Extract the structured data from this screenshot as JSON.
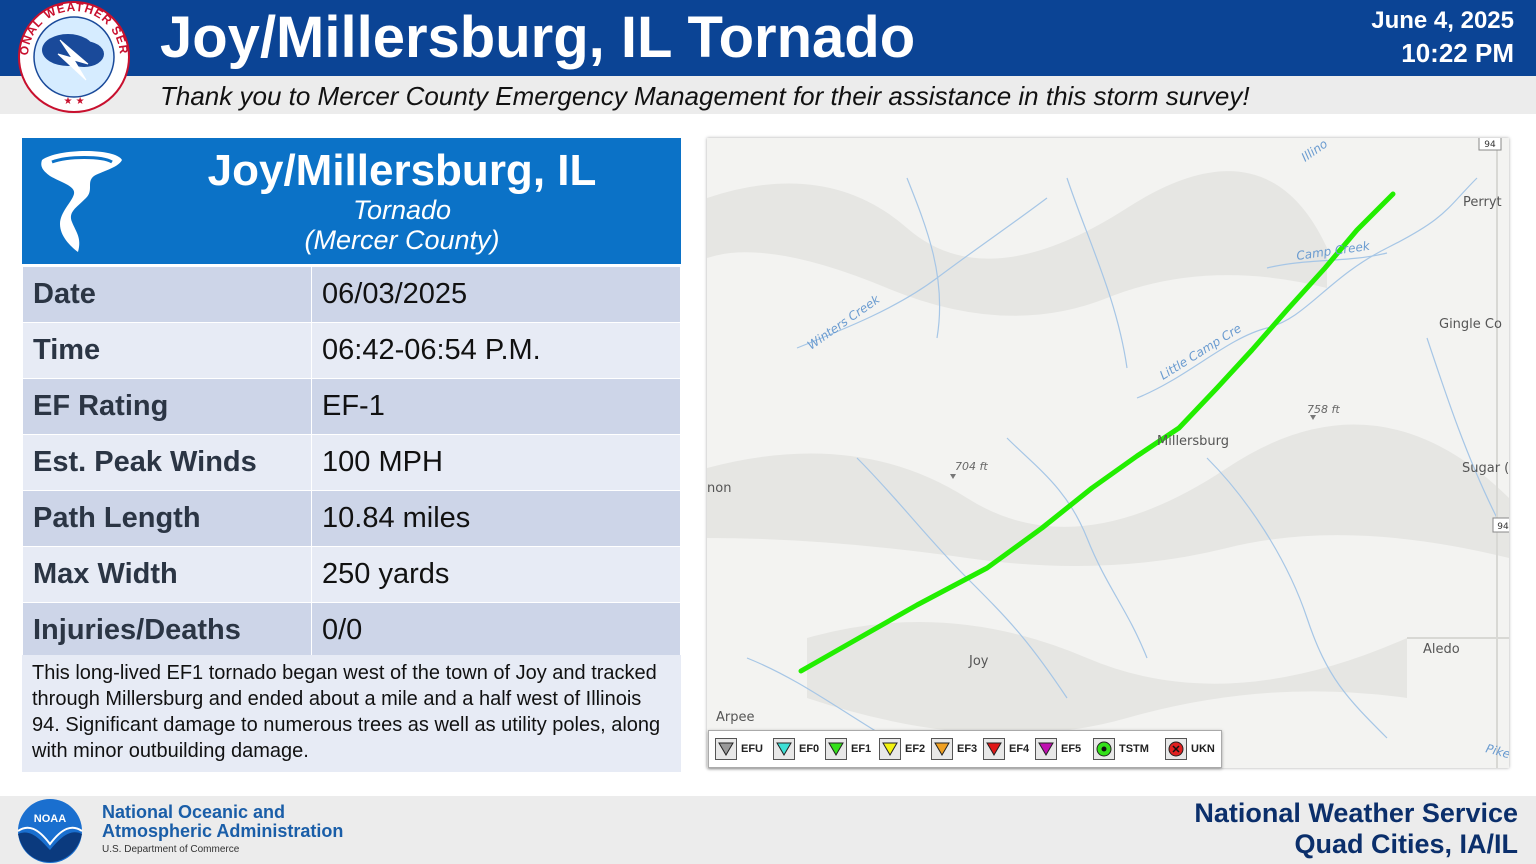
{
  "header": {
    "title": "Joy/Millersburg, IL Tornado",
    "date": "June 4, 2025",
    "time": "10:22 PM",
    "thanks": "Thank you to Mercer County Emergency Management for their assistance in this storm survey!",
    "logo_text": "NATIONAL WEATHER SERVICE",
    "logo_icon": "nws-logo-icon"
  },
  "card": {
    "title": "Joy/Millersburg, IL",
    "type": "Tornado",
    "county": "(Mercer County)",
    "icon": "tornado-icon",
    "rows": [
      {
        "label": "Date",
        "value": "06/03/2025"
      },
      {
        "label": "Time",
        "value": "06:42-06:54 P.M."
      },
      {
        "label": "EF Rating",
        "value": "EF-1"
      },
      {
        "label": "Est. Peak Winds",
        "value": "100 MPH"
      },
      {
        "label": "Path Length",
        "value": "10.84 miles"
      },
      {
        "label": "Max Width",
        "value": "250 yards"
      },
      {
        "label": "Injuries/Deaths",
        "value": "0/0"
      }
    ],
    "description": "This long-lived EF1 tornado began west of the town of Joy and tracked through Millersburg and ended about a mile and a half west of Illinois 94. Significant damage to numerous trees as well as utility poles, along with minor outbuilding damage."
  },
  "map": {
    "track_color": "#22ee00",
    "labels": {
      "perryton": "Perryt",
      "gingle": "Gingle Co",
      "sugar": "Sugar (",
      "aledo": "Aledo",
      "joy": "Joy",
      "arpee": "Arpee",
      "millersburg": "Millersburg",
      "elev_704": "704 ft",
      "elev_758": "758 ft",
      "winters_creek": "Winters Creek",
      "camp_creek": "Camp Creek",
      "little_camp_creek": "Little Camp Cre",
      "illinois_river": "Illino",
      "pike": "Pike",
      "left_edge": "non",
      "shield_top": "94",
      "shield_right": "94"
    }
  },
  "legend": [
    {
      "label": "EFU",
      "color": "#999999",
      "symbol": "triangle-down"
    },
    {
      "label": "EF0",
      "color": "#3de0d6",
      "symbol": "triangle-down"
    },
    {
      "label": "EF1",
      "color": "#33e01a",
      "symbol": "triangle-down"
    },
    {
      "label": "EF2",
      "color": "#f3f310",
      "symbol": "triangle-down"
    },
    {
      "label": "EF3",
      "color": "#f0a022",
      "symbol": "triangle-down"
    },
    {
      "label": "EF4",
      "color": "#e01818",
      "symbol": "triangle-down"
    },
    {
      "label": "EF5",
      "color": "#c010b0",
      "symbol": "triangle-down"
    },
    {
      "label": "TSTM",
      "color": "#33e01a",
      "symbol": "circle-dot"
    },
    {
      "label": "UKN",
      "color": "#e02020",
      "symbol": "circle-x"
    }
  ],
  "footer": {
    "noaa_line1": "National Oceanic and",
    "noaa_line2": "Atmospheric Administration",
    "noaa_line3": "U.S. Department of Commerce",
    "noaa_logo_text": "NOAA",
    "nws": "National Weather Service",
    "office": "Quad Cities, IA/IL"
  }
}
